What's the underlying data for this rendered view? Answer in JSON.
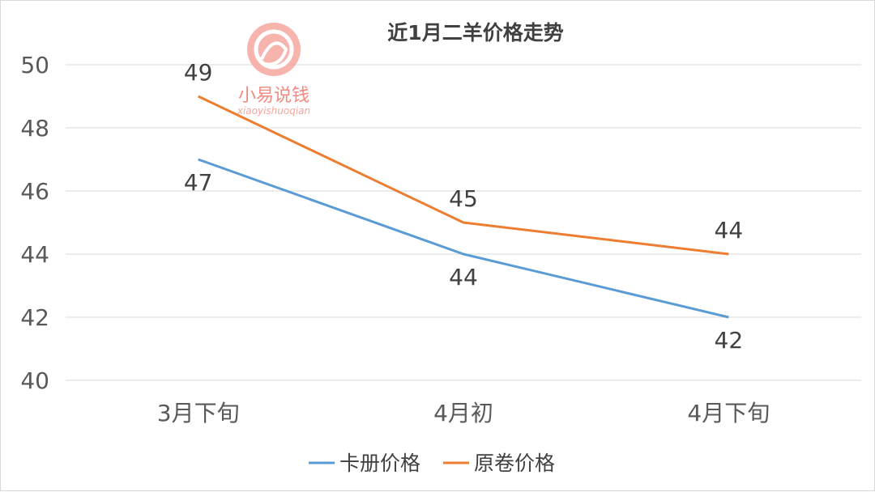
{
  "chart_data": {
    "type": "line",
    "title": "近1月二羊价格走势",
    "categories": [
      "3月下旬",
      "4月初",
      "4月下旬"
    ],
    "series": [
      {
        "name": "卡册价格",
        "values": [
          47,
          44,
          42
        ],
        "color": "#5b9bd5"
      },
      {
        "name": "原卷价格",
        "values": [
          49,
          45,
          44
        ],
        "color": "#ed7d31"
      }
    ],
    "ylim": [
      40,
      50
    ],
    "yticks": [
      "40",
      "42",
      "44",
      "46",
      "48",
      "50"
    ],
    "grid": true,
    "legend_position": "bottom"
  },
  "watermark": {
    "text": "小易说钱",
    "subtext": "xiaoyishuoqian",
    "color": "#f08a80"
  }
}
